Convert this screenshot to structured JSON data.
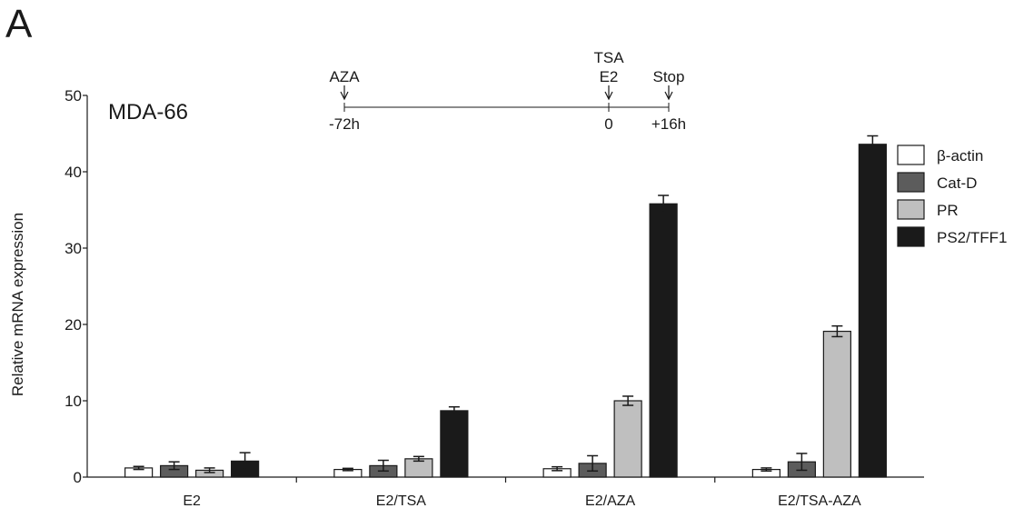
{
  "panel_letter": "A",
  "chart_data": {
    "type": "bar",
    "title": "",
    "sample_label": "MDA-66",
    "ylabel": "Relative mRNA expression",
    "xlabel": "",
    "ylim": [
      0,
      50
    ],
    "yticks": [
      0,
      10,
      20,
      30,
      40,
      50
    ],
    "categories": [
      "E2",
      "E2/TSA",
      "E2/AZA",
      "E2/TSA-AZA"
    ],
    "legend_position": "right",
    "grid": false,
    "series": [
      {
        "name": "β-actin",
        "color": "#ffffff",
        "values": [
          1.2,
          1.0,
          1.1,
          1.0
        ],
        "errors": [
          0.2,
          0.15,
          0.25,
          0.2
        ]
      },
      {
        "name": "Cat-D",
        "color": "#5c5c5c",
        "values": [
          1.5,
          1.5,
          1.8,
          2.0
        ],
        "errors": [
          0.5,
          0.7,
          1.0,
          1.1
        ]
      },
      {
        "name": "PR",
        "color": "#bfbfbf",
        "values": [
          0.9,
          2.4,
          10.0,
          19.1
        ],
        "errors": [
          0.3,
          0.3,
          0.6,
          0.7
        ]
      },
      {
        "name": "PS2/TFF1",
        "color": "#1a1a1a",
        "values": [
          2.1,
          8.7,
          35.8,
          43.6
        ],
        "errors": [
          1.1,
          0.5,
          1.1,
          1.1
        ]
      }
    ]
  },
  "timeline": {
    "events": [
      {
        "top_label": "",
        "label": "AZA",
        "time_label": "-72h"
      },
      {
        "top_label": "TSA",
        "label": "E2",
        "time_label": "0"
      },
      {
        "top_label": "",
        "label": "Stop",
        "time_label": "+16h"
      }
    ]
  }
}
